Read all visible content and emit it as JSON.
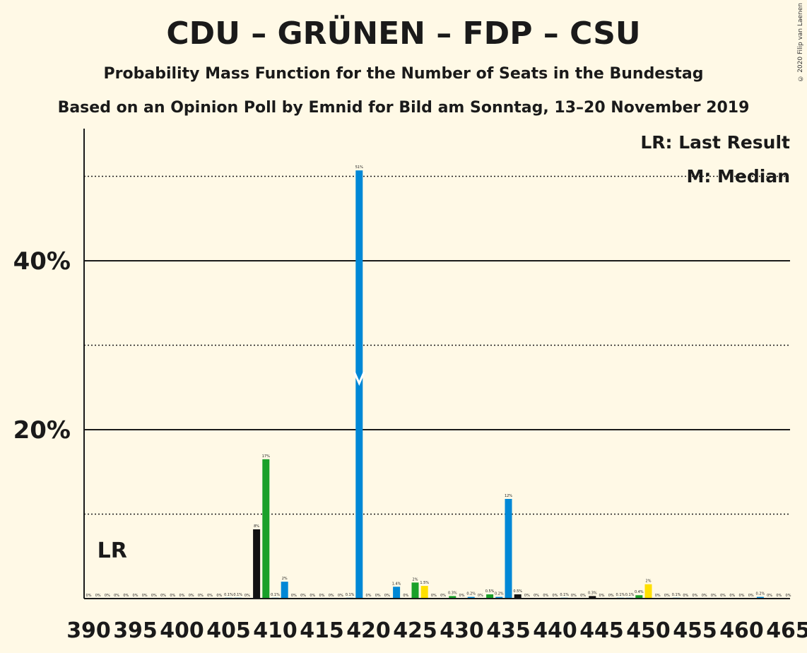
{
  "chart_data": {
    "type": "bar",
    "title": "CDU – GRÜNEN – FDP – CSU",
    "subtitle": "Probability Mass Function for the Number of Seats in the Bundestag",
    "subtitle2": "Based on an Opinion Poll by Emnid for Bild am Sonntag, 13–20 November 2019",
    "copyright": "© 2020 Filip van Laenen",
    "xlabel": "",
    "ylabel": "",
    "ylim": [
      0,
      55
    ],
    "yticks": [
      {
        "value": 20,
        "label": "20%"
      },
      {
        "value": 40,
        "label": "40%"
      }
    ],
    "gridlines_dotted": [
      10,
      30,
      50
    ],
    "xticks": [
      "390",
      "395",
      "400",
      "405",
      "410",
      "415",
      "420",
      "425",
      "430",
      "435",
      "440",
      "445",
      "450",
      "455",
      "460",
      "465"
    ],
    "xrange": [
      390,
      465
    ],
    "legend": {
      "lr": "LR: Last Result",
      "median": "M: Median",
      "placement": "top-right"
    },
    "last_result": {
      "seat": 391,
      "label": "LR"
    },
    "median": {
      "seat": 419,
      "label": "M"
    },
    "colors": {
      "blue": "#0088d6",
      "green": "#1aa02a",
      "black": "#111111",
      "yellow": "#ffe000"
    },
    "bars": [
      {
        "x": 390,
        "value": 0,
        "label": "0%",
        "color": "blue"
      },
      {
        "x": 391,
        "value": 0,
        "label": "0%",
        "color": "blue"
      },
      {
        "x": 392,
        "value": 0,
        "label": "0%",
        "color": "blue"
      },
      {
        "x": 393,
        "value": 0,
        "label": "0%",
        "color": "blue"
      },
      {
        "x": 394,
        "value": 0,
        "label": "0%",
        "color": "blue"
      },
      {
        "x": 395,
        "value": 0,
        "label": "0%",
        "color": "blue"
      },
      {
        "x": 396,
        "value": 0,
        "label": "0%",
        "color": "blue"
      },
      {
        "x": 397,
        "value": 0,
        "label": "0%",
        "color": "blue"
      },
      {
        "x": 398,
        "value": 0,
        "label": "0%",
        "color": "blue"
      },
      {
        "x": 399,
        "value": 0,
        "label": "0%",
        "color": "blue"
      },
      {
        "x": 400,
        "value": 0,
        "label": "0%",
        "color": "blue"
      },
      {
        "x": 401,
        "value": 0,
        "label": "0%",
        "color": "blue"
      },
      {
        "x": 402,
        "value": 0,
        "label": "0%",
        "color": "blue"
      },
      {
        "x": 403,
        "value": 0,
        "label": "0%",
        "color": "blue"
      },
      {
        "x": 404,
        "value": 0,
        "label": "0%",
        "color": "blue"
      },
      {
        "x": 405,
        "value": 0.1,
        "label": "0.1%",
        "color": "blue"
      },
      {
        "x": 406,
        "value": 0.1,
        "label": "0.1%",
        "color": "blue"
      },
      {
        "x": 407,
        "value": 0,
        "label": "0%",
        "color": "blue"
      },
      {
        "x": 408,
        "value": 8.2,
        "label": "8%",
        "color": "black"
      },
      {
        "x": 409,
        "value": 16.5,
        "label": "17%",
        "color": "green"
      },
      {
        "x": 410,
        "value": 0.1,
        "label": "0.1%",
        "color": "blue"
      },
      {
        "x": 411,
        "value": 2.0,
        "label": "2%",
        "color": "blue"
      },
      {
        "x": 412,
        "value": 0,
        "label": "0%",
        "color": "blue"
      },
      {
        "x": 413,
        "value": 0,
        "label": "0%",
        "color": "blue"
      },
      {
        "x": 414,
        "value": 0,
        "label": "0%",
        "color": "blue"
      },
      {
        "x": 415,
        "value": 0,
        "label": "0%",
        "color": "blue"
      },
      {
        "x": 416,
        "value": 0,
        "label": "0%",
        "color": "blue"
      },
      {
        "x": 417,
        "value": 0,
        "label": "0%",
        "color": "blue"
      },
      {
        "x": 418,
        "value": 0.1,
        "label": "0.1%",
        "color": "blue"
      },
      {
        "x": 419,
        "value": 50.7,
        "label": "51%",
        "color": "blue"
      },
      {
        "x": 420,
        "value": 0,
        "label": "0%",
        "color": "blue"
      },
      {
        "x": 421,
        "value": 0,
        "label": "0%",
        "color": "blue"
      },
      {
        "x": 422,
        "value": 0,
        "label": "0%",
        "color": "blue"
      },
      {
        "x": 423,
        "value": 1.4,
        "label": "1.4%",
        "color": "blue"
      },
      {
        "x": 424,
        "value": 0,
        "label": "0%",
        "color": "blue"
      },
      {
        "x": 425,
        "value": 1.9,
        "label": "2%",
        "color": "green"
      },
      {
        "x": 426,
        "value": 1.5,
        "label": "1.5%",
        "color": "yellow"
      },
      {
        "x": 427,
        "value": 0,
        "label": "0%",
        "color": "blue"
      },
      {
        "x": 428,
        "value": 0,
        "label": "0%",
        "color": "blue"
      },
      {
        "x": 429,
        "value": 0.3,
        "label": "0.3%",
        "color": "green"
      },
      {
        "x": 430,
        "value": 0,
        "label": "0%",
        "color": "blue"
      },
      {
        "x": 431,
        "value": 0.2,
        "label": "0.2%",
        "color": "blue"
      },
      {
        "x": 432,
        "value": 0,
        "label": "0%",
        "color": "blue"
      },
      {
        "x": 433,
        "value": 0.5,
        "label": "0.5%",
        "color": "green"
      },
      {
        "x": 434,
        "value": 0.2,
        "label": "0.2%",
        "color": "blue"
      },
      {
        "x": 435,
        "value": 11.8,
        "label": "12%",
        "color": "blue"
      },
      {
        "x": 436,
        "value": 0.5,
        "label": "0.5%",
        "color": "black"
      },
      {
        "x": 437,
        "value": 0,
        "label": "0%",
        "color": "blue"
      },
      {
        "x": 438,
        "value": 0,
        "label": "0%",
        "color": "blue"
      },
      {
        "x": 439,
        "value": 0,
        "label": "0%",
        "color": "blue"
      },
      {
        "x": 440,
        "value": 0,
        "label": "0%",
        "color": "blue"
      },
      {
        "x": 441,
        "value": 0.1,
        "label": "0.1%",
        "color": "blue"
      },
      {
        "x": 442,
        "value": 0,
        "label": "0%",
        "color": "blue"
      },
      {
        "x": 443,
        "value": 0,
        "label": "0%",
        "color": "blue"
      },
      {
        "x": 444,
        "value": 0.3,
        "label": "0.3%",
        "color": "black"
      },
      {
        "x": 445,
        "value": 0,
        "label": "0%",
        "color": "blue"
      },
      {
        "x": 446,
        "value": 0,
        "label": "0%",
        "color": "blue"
      },
      {
        "x": 447,
        "value": 0.1,
        "label": "0.1%",
        "color": "blue"
      },
      {
        "x": 448,
        "value": 0.1,
        "label": "0.1%",
        "color": "blue"
      },
      {
        "x": 449,
        "value": 0.4,
        "label": "0.4%",
        "color": "green"
      },
      {
        "x": 450,
        "value": 1.7,
        "label": "2%",
        "color": "yellow"
      },
      {
        "x": 451,
        "value": 0,
        "label": "0%",
        "color": "blue"
      },
      {
        "x": 452,
        "value": 0,
        "label": "0%",
        "color": "blue"
      },
      {
        "x": 453,
        "value": 0.1,
        "label": "0.1%",
        "color": "blue"
      },
      {
        "x": 454,
        "value": 0,
        "label": "0%",
        "color": "blue"
      },
      {
        "x": 455,
        "value": 0,
        "label": "0%",
        "color": "blue"
      },
      {
        "x": 456,
        "value": 0,
        "label": "0%",
        "color": "blue"
      },
      {
        "x": 457,
        "value": 0,
        "label": "0%",
        "color": "blue"
      },
      {
        "x": 458,
        "value": 0,
        "label": "0%",
        "color": "blue"
      },
      {
        "x": 459,
        "value": 0,
        "label": "0%",
        "color": "blue"
      },
      {
        "x": 460,
        "value": 0,
        "label": "0%",
        "color": "blue"
      },
      {
        "x": 461,
        "value": 0,
        "label": "0%",
        "color": "blue"
      },
      {
        "x": 462,
        "value": 0.2,
        "label": "0.2%",
        "color": "blue"
      },
      {
        "x": 463,
        "value": 0,
        "label": "0%",
        "color": "blue"
      },
      {
        "x": 464,
        "value": 0,
        "label": "0%",
        "color": "blue"
      },
      {
        "x": 465,
        "value": 0,
        "label": "0%",
        "color": "blue"
      }
    ]
  }
}
